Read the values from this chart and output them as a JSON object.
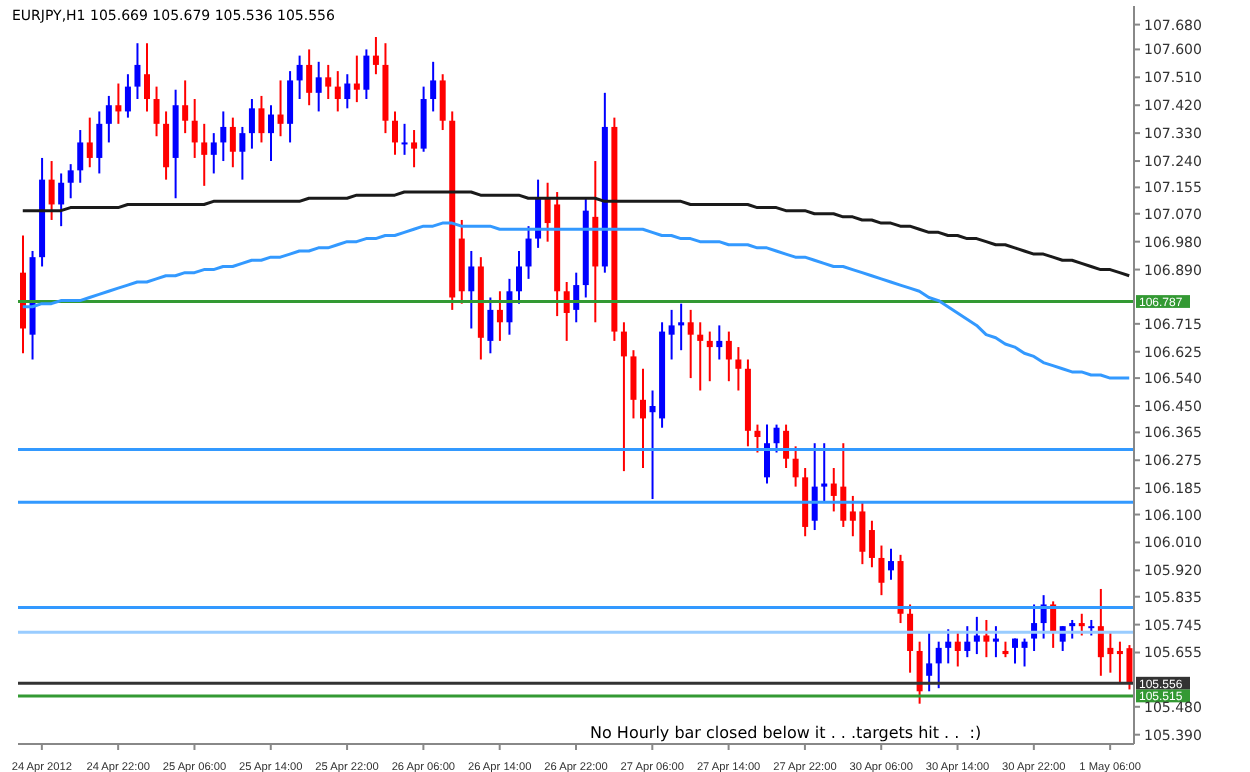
{
  "chart_data": {
    "type": "candlestick",
    "title": "EURJPY,H1 105.669 105.679 105.536 105.556",
    "categories": [
      null,
      null,
      "24 Apr 2012",
      null,
      null,
      null,
      null,
      null,
      null,
      null,
      "24 Apr 22:00",
      null,
      null,
      null,
      null,
      null,
      null,
      null,
      "25 Apr 06:00",
      null,
      null,
      null,
      null,
      null,
      null,
      null,
      "25 Apr 14:00",
      null,
      null,
      null,
      null,
      null,
      null,
      null,
      "25 Apr 22:00",
      null,
      null,
      null,
      null,
      null,
      null,
      null,
      "26 Apr 06:00",
      null,
      null,
      null,
      null,
      null,
      null,
      null,
      "26 Apr 14:00",
      null,
      null,
      null,
      null,
      null,
      null,
      null,
      "26 Apr 22:00",
      null,
      null,
      null,
      null,
      null,
      null,
      null,
      "27 Apr 06:00",
      null,
      null,
      null,
      null,
      null,
      null,
      null,
      "27 Apr 14:00",
      null,
      null,
      null,
      null,
      null,
      null,
      null,
      "27 Apr 22:00",
      null,
      null,
      null,
      null,
      null,
      null,
      null,
      "30 Apr 06:00",
      null,
      null,
      null,
      null,
      null,
      null,
      null,
      "30 Apr 14:00",
      null,
      null,
      null,
      null,
      null,
      null,
      null,
      "30 Apr 22:00",
      null,
      null,
      null,
      null,
      null,
      null,
      null,
      "1 May 06:00",
      null,
      null
    ],
    "ohlc": [
      [
        106.88,
        107.0,
        106.62,
        106.7
      ],
      [
        106.68,
        106.95,
        106.6,
        106.93
      ],
      [
        106.93,
        107.25,
        106.9,
        107.18
      ],
      [
        107.18,
        107.24,
        107.05,
        107.1
      ],
      [
        107.1,
        107.2,
        107.03,
        107.17
      ],
      [
        107.17,
        107.23,
        107.12,
        107.21
      ],
      [
        107.21,
        107.34,
        107.17,
        107.3
      ],
      [
        107.3,
        107.38,
        107.22,
        107.25
      ],
      [
        107.25,
        107.4,
        107.2,
        107.36
      ],
      [
        107.36,
        107.45,
        107.3,
        107.42
      ],
      [
        107.42,
        107.49,
        107.36,
        107.4
      ],
      [
        107.4,
        107.52,
        107.38,
        107.48
      ],
      [
        107.48,
        107.62,
        107.44,
        107.55
      ],
      [
        107.52,
        107.62,
        107.4,
        107.44
      ],
      [
        107.44,
        107.48,
        107.32,
        107.36
      ],
      [
        107.36,
        107.4,
        107.18,
        107.22
      ],
      [
        107.25,
        107.47,
        107.12,
        107.42
      ],
      [
        107.42,
        107.5,
        107.33,
        107.37
      ],
      [
        107.37,
        107.44,
        107.25,
        107.3
      ],
      [
        107.3,
        107.36,
        107.16,
        107.26
      ],
      [
        107.26,
        107.33,
        107.2,
        107.3
      ],
      [
        107.3,
        107.4,
        107.24,
        107.35
      ],
      [
        107.35,
        107.38,
        107.22,
        107.27
      ],
      [
        107.27,
        107.35,
        107.18,
        107.33
      ],
      [
        107.33,
        107.44,
        107.28,
        107.41
      ],
      [
        107.41,
        107.45,
        107.3,
        107.33
      ],
      [
        107.33,
        107.42,
        107.24,
        107.39
      ],
      [
        107.39,
        107.5,
        107.32,
        107.36
      ],
      [
        107.36,
        107.53,
        107.3,
        107.5
      ],
      [
        107.5,
        107.58,
        107.44,
        107.55
      ],
      [
        107.55,
        107.6,
        107.42,
        107.46
      ],
      [
        107.46,
        107.56,
        107.4,
        107.51
      ],
      [
        107.51,
        107.55,
        107.44,
        107.48
      ],
      [
        107.48,
        107.53,
        107.4,
        107.44
      ],
      [
        107.44,
        107.52,
        107.41,
        107.49
      ],
      [
        107.49,
        107.58,
        107.43,
        107.47
      ],
      [
        107.47,
        107.6,
        107.44,
        107.58
      ],
      [
        107.58,
        107.64,
        107.52,
        107.55
      ],
      [
        107.55,
        107.62,
        107.33,
        107.37
      ],
      [
        107.37,
        107.4,
        107.26,
        107.3
      ],
      [
        107.3,
        107.36,
        107.26,
        107.3
      ],
      [
        107.3,
        107.34,
        107.22,
        107.28
      ],
      [
        107.28,
        107.48,
        107.27,
        107.44
      ],
      [
        107.44,
        107.56,
        107.4,
        107.5
      ],
      [
        107.5,
        107.52,
        107.34,
        107.37
      ],
      [
        107.37,
        107.4,
        106.76,
        106.8
      ],
      [
        106.99,
        107.05,
        106.78,
        106.82
      ],
      [
        106.82,
        106.95,
        106.7,
        106.9
      ],
      [
        106.9,
        106.93,
        106.6,
        106.67
      ],
      [
        106.66,
        106.8,
        106.62,
        106.76
      ],
      [
        106.76,
        106.82,
        106.66,
        106.72
      ],
      [
        106.72,
        106.86,
        106.68,
        106.82
      ],
      [
        106.82,
        106.95,
        106.78,
        106.9
      ],
      [
        106.9,
        107.03,
        106.86,
        106.99
      ],
      [
        106.99,
        107.18,
        106.96,
        107.12
      ],
      [
        107.12,
        107.17,
        106.98,
        107.04
      ],
      [
        107.1,
        107.14,
        106.74,
        106.82
      ],
      [
        106.82,
        106.85,
        106.66,
        106.75
      ],
      [
        106.76,
        106.88,
        106.72,
        106.84
      ],
      [
        106.84,
        107.12,
        106.8,
        107.08
      ],
      [
        107.06,
        107.24,
        106.72,
        106.9
      ],
      [
        106.9,
        107.46,
        106.88,
        107.35
      ],
      [
        107.35,
        107.38,
        106.66,
        106.69
      ],
      [
        106.69,
        106.72,
        106.24,
        106.61
      ],
      [
        106.61,
        106.63,
        106.41,
        106.47
      ],
      [
        106.47,
        106.57,
        106.25,
        106.41
      ],
      [
        106.43,
        106.5,
        106.15,
        106.45
      ],
      [
        106.41,
        106.72,
        106.38,
        106.69
      ],
      [
        106.68,
        106.76,
        106.6,
        106.71
      ],
      [
        106.71,
        106.78,
        106.63,
        106.72
      ],
      [
        106.72,
        106.76,
        106.54,
        106.68
      ],
      [
        106.68,
        106.72,
        106.5,
        106.66
      ],
      [
        106.66,
        106.69,
        106.53,
        106.64
      ],
      [
        106.64,
        106.71,
        106.6,
        106.66
      ],
      [
        106.66,
        106.69,
        106.53,
        106.6
      ],
      [
        106.6,
        106.64,
        106.5,
        106.57
      ],
      [
        106.57,
        106.6,
        106.32,
        106.37
      ],
      [
        106.37,
        106.39,
        106.3,
        106.35
      ],
      [
        106.22,
        106.39,
        106.2,
        106.33
      ],
      [
        106.33,
        106.39,
        106.3,
        106.38
      ],
      [
        106.37,
        106.39,
        106.25,
        106.28
      ],
      [
        106.28,
        106.32,
        106.19,
        106.22
      ],
      [
        106.22,
        106.25,
        106.03,
        106.06
      ],
      [
        106.08,
        106.33,
        106.05,
        106.19
      ],
      [
        106.19,
        106.33,
        106.14,
        106.2
      ],
      [
        106.2,
        106.25,
        106.11,
        106.16
      ],
      [
        106.19,
        106.33,
        106.06,
        106.08
      ],
      [
        106.11,
        106.16,
        106.03,
        106.08
      ],
      [
        106.11,
        106.14,
        105.94,
        105.98
      ],
      [
        106.05,
        106.08,
        105.93,
        105.96
      ],
      [
        105.96,
        106.0,
        105.84,
        105.88
      ],
      [
        105.92,
        105.99,
        105.89,
        105.95
      ],
      [
        105.95,
        105.97,
        105.75,
        105.78
      ],
      [
        105.78,
        105.81,
        105.59,
        105.66
      ],
      [
        105.66,
        105.69,
        105.49,
        105.53
      ],
      [
        105.58,
        105.72,
        105.53,
        105.62
      ],
      [
        105.62,
        105.69,
        105.54,
        105.67
      ],
      [
        105.67,
        105.73,
        105.62,
        105.69
      ],
      [
        105.69,
        105.72,
        105.61,
        105.66
      ],
      [
        105.66,
        105.74,
        105.64,
        105.69
      ],
      [
        105.69,
        105.77,
        105.65,
        105.71
      ],
      [
        105.71,
        105.76,
        105.64,
        105.69
      ],
      [
        105.69,
        105.74,
        105.64,
        105.7
      ],
      [
        105.66,
        105.69,
        105.64,
        105.65
      ],
      [
        105.67,
        105.7,
        105.62,
        105.7
      ],
      [
        105.67,
        105.7,
        105.61,
        105.69
      ],
      [
        105.7,
        105.81,
        105.66,
        105.75
      ],
      [
        105.75,
        105.84,
        105.7,
        105.81
      ],
      [
        105.81,
        105.82,
        105.67,
        105.72
      ],
      [
        105.69,
        105.74,
        105.66,
        105.74
      ],
      [
        105.74,
        105.76,
        105.7,
        105.75
      ],
      [
        105.75,
        105.78,
        105.71,
        105.74
      ],
      [
        105.74,
        105.76,
        105.71,
        105.74
      ],
      [
        105.74,
        105.86,
        105.58,
        105.64
      ],
      [
        105.67,
        105.72,
        105.59,
        105.65
      ],
      [
        105.66,
        105.69,
        105.56,
        105.65
      ],
      [
        105.669,
        105.679,
        105.536,
        105.556
      ]
    ],
    "colors": [
      "#ff0000",
      "#0000ff",
      "#0000ff",
      "#ff0000",
      "#0000ff",
      "#0000ff",
      "#0000ff",
      "#ff0000",
      "#0000ff",
      "#0000ff",
      "#ff0000",
      "#0000ff",
      "#0000ff",
      "#ff0000",
      "#ff0000",
      "#ff0000",
      "#0000ff",
      "#ff0000",
      "#ff0000",
      "#ff0000",
      "#0000ff",
      "#0000ff",
      "#ff0000",
      "#0000ff",
      "#0000ff",
      "#ff0000",
      "#0000ff",
      "#ff0000",
      "#0000ff",
      "#0000ff",
      "#ff0000",
      "#0000ff",
      "#ff0000",
      "#ff0000",
      "#0000ff",
      "#ff0000",
      "#0000ff",
      "#ff0000",
      "#ff0000",
      "#ff0000",
      "#0000ff",
      "#ff0000",
      "#0000ff",
      "#0000ff",
      "#ff0000",
      "#ff0000",
      "#ff0000",
      "#0000ff",
      "#ff0000",
      "#0000ff",
      "#ff0000",
      "#0000ff",
      "#0000ff",
      "#0000ff",
      "#0000ff",
      "#ff0000",
      "#ff0000",
      "#ff0000",
      "#0000ff",
      "#0000ff",
      "#ff0000",
      "#0000ff",
      "#ff0000",
      "#ff0000",
      "#ff0000",
      "#ff0000",
      "#0000ff",
      "#0000ff",
      "#0000ff",
      "#0000ff",
      "#ff0000",
      "#ff0000",
      "#ff0000",
      "#0000ff",
      "#ff0000",
      "#ff0000",
      "#ff0000",
      "#ff0000",
      "#0000ff",
      "#0000ff",
      "#ff0000",
      "#ff0000",
      "#ff0000",
      "#0000ff",
      "#0000ff",
      "#ff0000",
      "#ff0000",
      "#ff0000",
      "#ff0000",
      "#ff0000",
      "#ff0000",
      "#0000ff",
      "#ff0000",
      "#ff0000",
      "#ff0000",
      "#0000ff",
      "#0000ff",
      "#0000ff",
      "#ff0000",
      "#0000ff",
      "#0000ff",
      "#ff0000",
      "#0000ff",
      "#ff0000",
      "#0000ff",
      "#0000ff",
      "#0000ff",
      "#0000ff",
      "#ff0000",
      "#0000ff",
      "#0000ff",
      "#ff0000",
      "#0000ff",
      "#ff0000",
      "#ff0000",
      "#ff0000",
      "#ff0000"
    ],
    "series": [
      {
        "type": "line",
        "color": "#1a1a1a",
        "values": [
          107.08,
          107.08,
          107.08,
          107.08,
          107.08,
          107.09,
          107.09,
          107.09,
          107.09,
          107.09,
          107.09,
          107.1,
          107.1,
          107.1,
          107.1,
          107.1,
          107.1,
          107.1,
          107.1,
          107.1,
          107.11,
          107.11,
          107.11,
          107.11,
          107.11,
          107.11,
          107.11,
          107.11,
          107.11,
          107.11,
          107.12,
          107.12,
          107.12,
          107.12,
          107.12,
          107.13,
          107.13,
          107.13,
          107.13,
          107.13,
          107.14,
          107.14,
          107.14,
          107.14,
          107.14,
          107.14,
          107.14,
          107.14,
          107.13,
          107.13,
          107.13,
          107.13,
          107.13,
          107.12,
          107.12,
          107.12,
          107.12,
          107.12,
          107.12,
          107.12,
          107.12,
          107.11,
          107.11,
          107.11,
          107.11,
          107.11,
          107.11,
          107.11,
          107.11,
          107.11,
          107.1,
          107.1,
          107.1,
          107.1,
          107.1,
          107.1,
          107.1,
          107.09,
          107.09,
          107.09,
          107.08,
          107.08,
          107.08,
          107.07,
          107.07,
          107.07,
          107.06,
          107.06,
          107.05,
          107.05,
          107.04,
          107.04,
          107.03,
          107.03,
          107.02,
          107.01,
          107.01,
          107.0,
          107.0,
          106.99,
          106.99,
          106.98,
          106.97,
          106.97,
          106.96,
          106.95,
          106.94,
          106.94,
          106.93,
          106.92,
          106.92,
          106.91,
          106.9,
          106.89,
          106.89,
          106.88,
          106.87
        ]
      },
      {
        "type": "line",
        "color": "#3399ff",
        "values": [
          106.77,
          106.77,
          106.78,
          106.78,
          106.79,
          106.79,
          106.79,
          106.8,
          106.81,
          106.82,
          106.83,
          106.84,
          106.85,
          106.85,
          106.86,
          106.87,
          106.87,
          106.88,
          106.88,
          106.89,
          106.89,
          106.9,
          106.9,
          106.91,
          106.92,
          106.92,
          106.93,
          106.93,
          106.94,
          106.95,
          106.95,
          106.96,
          106.96,
          106.97,
          106.98,
          106.98,
          106.99,
          106.99,
          107.0,
          107.0,
          107.01,
          107.02,
          107.03,
          107.03,
          107.04,
          107.04,
          107.03,
          107.03,
          107.03,
          107.03,
          107.02,
          107.02,
          107.02,
          107.02,
          107.02,
          107.02,
          107.02,
          107.02,
          107.02,
          107.02,
          107.02,
          107.02,
          107.02,
          107.02,
          107.02,
          107.02,
          107.01,
          107.0,
          107.0,
          106.99,
          106.99,
          106.98,
          106.98,
          106.98,
          106.97,
          106.97,
          106.97,
          106.96,
          106.96,
          106.95,
          106.94,
          106.93,
          106.93,
          106.92,
          106.91,
          106.9,
          106.9,
          106.89,
          106.88,
          106.87,
          106.86,
          106.85,
          106.84,
          106.83,
          106.82,
          106.8,
          106.79,
          106.77,
          106.75,
          106.73,
          106.71,
          106.68,
          106.67,
          106.65,
          106.64,
          106.62,
          106.61,
          106.59,
          106.58,
          106.57,
          106.56,
          106.56,
          106.55,
          106.55,
          106.54,
          106.54,
          106.54
        ]
      }
    ],
    "ylim": [
      105.36,
      107.74
    ],
    "yticks": [
      {
        "value": 107.68,
        "label": "107.680"
      },
      {
        "value": 107.6,
        "label": "107.600"
      },
      {
        "value": 107.51,
        "label": "107.510"
      },
      {
        "value": 107.42,
        "label": "107.420"
      },
      {
        "value": 107.33,
        "label": "107.330"
      },
      {
        "value": 107.24,
        "label": "107.240"
      },
      {
        "value": 107.155,
        "label": "107.155"
      },
      {
        "value": 107.07,
        "label": "107.070"
      },
      {
        "value": 106.98,
        "label": "106.980"
      },
      {
        "value": 106.89,
        "label": "106.890"
      },
      {
        "value": 106.715,
        "label": "106.715"
      },
      {
        "value": 106.625,
        "label": "106.625"
      },
      {
        "value": 106.54,
        "label": "106.540"
      },
      {
        "value": 106.45,
        "label": "106.450"
      },
      {
        "value": 106.365,
        "label": "106.365"
      },
      {
        "value": 106.275,
        "label": "106.275"
      },
      {
        "value": 106.185,
        "label": "106.185"
      },
      {
        "value": 106.1,
        "label": "106.100"
      },
      {
        "value": 106.01,
        "label": "106.010"
      },
      {
        "value": 105.92,
        "label": "105.920"
      },
      {
        "value": 105.835,
        "label": "105.835"
      },
      {
        "value": 105.745,
        "label": "105.745"
      },
      {
        "value": 105.655,
        "label": "105.655"
      },
      {
        "value": 105.48,
        "label": "105.480"
      },
      {
        "value": 105.39,
        "label": "105.390"
      }
    ],
    "ref_lines": [
      {
        "axis": "y",
        "value": 106.787,
        "label": "106.787",
        "color": "#339933"
      },
      {
        "axis": "y",
        "value": 106.31,
        "color": "#3399ff"
      },
      {
        "axis": "y",
        "value": 106.14,
        "color": "#3399ff"
      },
      {
        "axis": "y",
        "value": 105.8,
        "color": "#3399ff"
      },
      {
        "axis": "y",
        "value": 105.72,
        "color": "#99ccff"
      },
      {
        "axis": "y",
        "value": 105.556,
        "label": "105.556",
        "color": "#333333"
      },
      {
        "axis": "y",
        "value": 105.515,
        "label": "105.515",
        "color": "#339933"
      }
    ],
    "annotations": [
      "No Hourly bar closed below it . . .targets hit . .  :)"
    ],
    "grid": false,
    "legend": false
  }
}
